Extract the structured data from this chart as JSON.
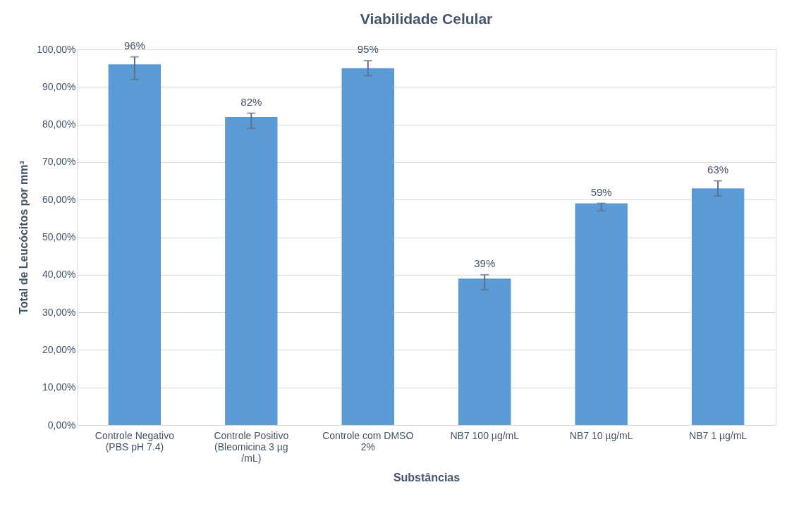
{
  "chart_data": {
    "type": "bar",
    "title": "Viabilidade Celular",
    "xlabel": "Substâncias",
    "ylabel": "Total de Leucócitos por mm³",
    "categories": [
      "Controle Negativo (PBS pH 7.4)",
      "Controle Positivo (Bleomicina 3 µg /mL)",
      "Controle com DMSO 2%",
      "NB7 100 µg/mL",
      "NB7 10 µg/mL",
      "NB7 1 µg/mL"
    ],
    "values": [
      96,
      82,
      95,
      39,
      59,
      63
    ],
    "value_labels": [
      "96%",
      "82%",
      "95%",
      "39%",
      "59%",
      "63%"
    ],
    "errors": [
      [
        92,
        98
      ],
      [
        79,
        83
      ],
      [
        93,
        97
      ],
      [
        36,
        40
      ],
      [
        57,
        59
      ],
      [
        61,
        65
      ]
    ],
    "color": "#5b9bd5",
    "ylim": [
      0,
      100
    ],
    "yticks": [
      {
        "value": 0,
        "label": "0,00%"
      },
      {
        "value": 10,
        "label": "10,00%"
      },
      {
        "value": 20,
        "label": "20,00%"
      },
      {
        "value": 30,
        "label": "30,00%"
      },
      {
        "value": 40,
        "label": "40,00%"
      },
      {
        "value": 50,
        "label": "50,00%"
      },
      {
        "value": 60,
        "label": "60,00%"
      },
      {
        "value": 70,
        "label": "70,00%"
      },
      {
        "value": 80,
        "label": "80,00%"
      },
      {
        "value": 90,
        "label": "90,00%"
      },
      {
        "value": 100,
        "label": "100,00%"
      }
    ],
    "grid": "y"
  }
}
